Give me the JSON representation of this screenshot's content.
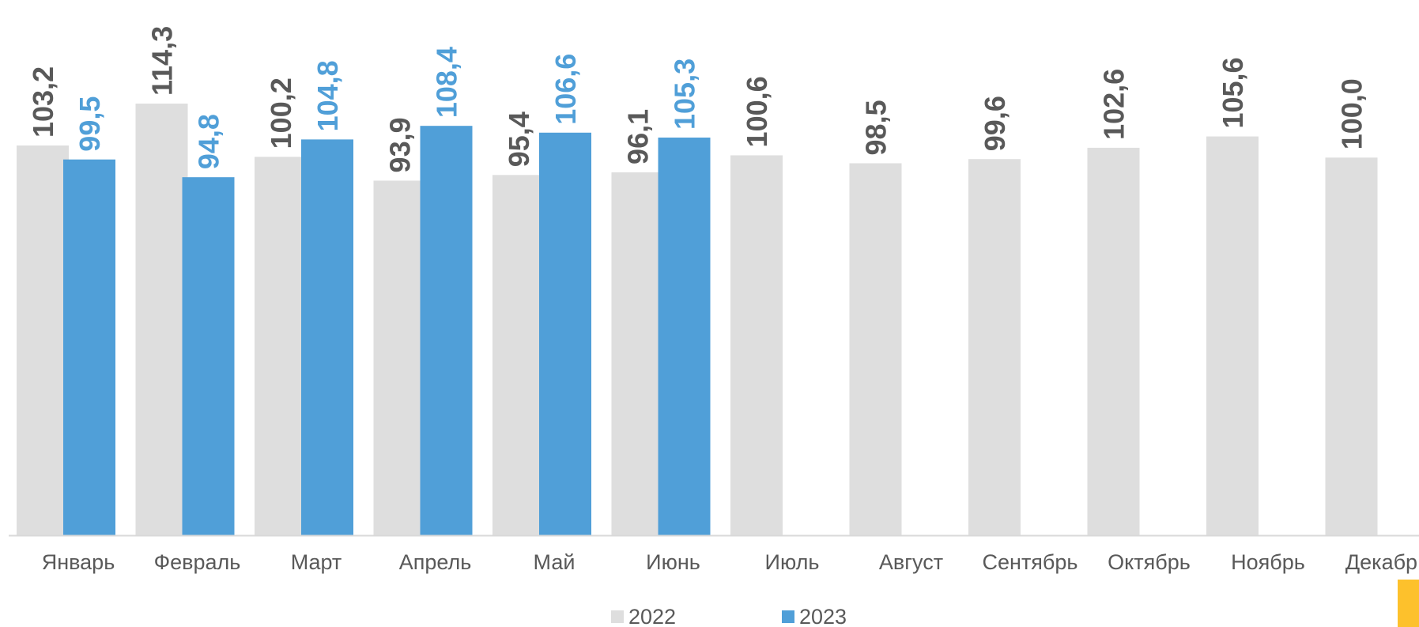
{
  "chart_data": {
    "type": "bar",
    "title": "",
    "xlabel": "",
    "ylabel": "",
    "categories": [
      "Январь",
      "Февраль",
      "Март",
      "Апрель",
      "Май",
      "Июнь",
      "Июль",
      "Август",
      "Сентябрь",
      "Октябрь",
      "Ноябрь",
      "Декабрь"
    ],
    "series": [
      {
        "name": "2022",
        "color": "#dedede",
        "label_color": "#595959",
        "values": [
          103.2,
          114.3,
          100.2,
          93.9,
          95.4,
          96.1,
          100.6,
          98.5,
          99.6,
          102.6,
          105.6,
          100.0
        ],
        "labels": [
          "103,2",
          "114,3",
          "100,2",
          "93,9",
          "95,4",
          "96,1",
          "100,6",
          "98,5",
          "99,6",
          "102,6",
          "105,6",
          "100,0"
        ]
      },
      {
        "name": "2023",
        "color": "#509fd8",
        "label_color": "#509fd8",
        "values": [
          99.5,
          94.8,
          104.8,
          108.4,
          106.6,
          105.3,
          null,
          null,
          null,
          null,
          null,
          null
        ],
        "labels": [
          "99,5",
          "94,8",
          "104,8",
          "108,4",
          "106,6",
          "105,3",
          "",
          "",
          "",
          "",
          "",
          ""
        ]
      }
    ],
    "ylim": [
      0,
      114.3
    ],
    "grid": false,
    "legend_position": "bottom",
    "accent_color": "#fdc12c"
  }
}
